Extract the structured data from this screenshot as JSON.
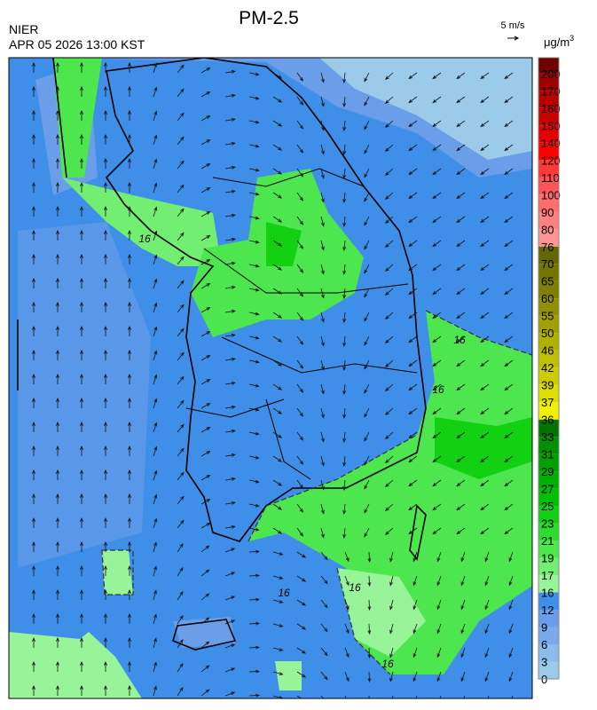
{
  "header": {
    "title": "PM-2.5",
    "agency": "NIER",
    "datetime": "APR 05 2026 13:00 KST",
    "wind_scale": "5 m/s"
  },
  "colorbar": {
    "unit": "μg/m",
    "unit_sup": "3",
    "levels": [
      0,
      3,
      6,
      9,
      12,
      16,
      17,
      19,
      21,
      23,
      25,
      27,
      29,
      31,
      33,
      36,
      37,
      39,
      42,
      46,
      50,
      55,
      60,
      65,
      70,
      76,
      80,
      90,
      100,
      110,
      120,
      140,
      150,
      160,
      170,
      200
    ],
    "colors": [
      "#9ccbe9",
      "#8cbbe9",
      "#79aae9",
      "#6a9ee9",
      "#3f8ee8",
      "#98f498",
      "#72ee72",
      "#4ee64e",
      "#2edc2e",
      "#12d012",
      "#00c000",
      "#00b000",
      "#00a000",
      "#009000",
      "#007400",
      "#f0f000",
      "#dede00",
      "#cccc00",
      "#c0c000",
      "#b0b000",
      "#a0a000",
      "#909000",
      "#808000",
      "#747400",
      "#666600",
      "#ff9494",
      "#ff8080",
      "#ff6e6e",
      "#ff5555",
      "#ff3838",
      "#ff0000",
      "#e40000",
      "#cc0000",
      "#b80000",
      "#a00000",
      "#700000"
    ]
  },
  "contour_labels": [
    "16",
    "16",
    "16",
    "16",
    "16",
    "16"
  ]
}
